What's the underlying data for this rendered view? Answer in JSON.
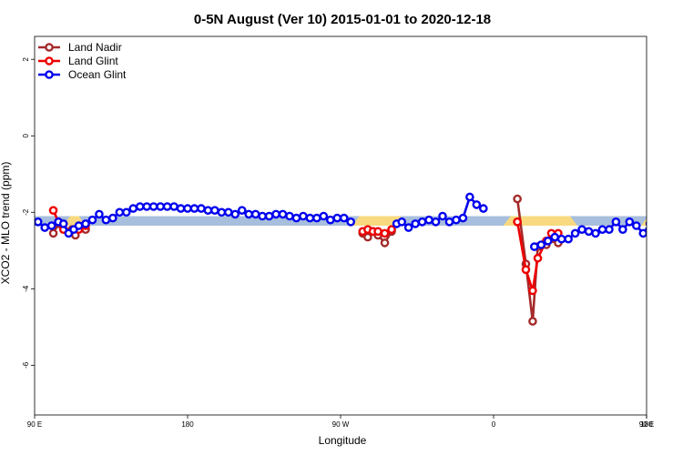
{
  "chart_data": {
    "type": "line",
    "title": "0-5N August (Ver 10)   2015-01-01 to 2020-12-18",
    "xlabel": "Longitude",
    "ylabel": "XCO2 - MLO trend (ppm)",
    "xlim": [
      90,
      450
    ],
    "ylim": [
      -7.3,
      2.6
    ],
    "x_ticks": [
      {
        "value": 90,
        "label": "90 E"
      },
      {
        "value": 180,
        "label": "180"
      },
      {
        "value": 270,
        "label": "90 W"
      },
      {
        "value": 360,
        "label": "0"
      },
      {
        "value": 450,
        "label": "90 E"
      },
      {
        "value": 540,
        "label": "180"
      }
    ],
    "x_ticks_note": "last tick (180) drawn at right edge 450",
    "y_ticks": [
      2,
      0,
      -2,
      -4,
      -6
    ],
    "legend": {
      "position": "top-left"
    },
    "bands": {
      "blue": {
        "y_min": -2.35,
        "y_max": -2.1,
        "color": "#a7bedc",
        "x_from": 90,
        "x_to": 450
      },
      "yellow": {
        "color": "#f9d980",
        "segments": [
          {
            "x_from": 111,
            "x_to": 116
          },
          {
            "x_from": 281,
            "x_to": 305
          },
          {
            "x_from": 370,
            "x_to": 405
          },
          {
            "x_from": 451,
            "x_to": 458
          }
        ]
      }
    },
    "series": [
      {
        "name": "Land Nadir",
        "color": "#a52a2a",
        "segments": [
          [
            [
              101,
              -2.55
            ],
            [
              104,
              -2.3
            ]
          ],
          [
            [
              112,
              -2.45
            ],
            [
              114,
              -2.6
            ]
          ],
          [
            [
              116,
              -2.4
            ],
            [
              120,
              -2.45
            ]
          ],
          [
            [
              283,
              -2.55
            ],
            [
              286,
              -2.65
            ],
            [
              289,
              -2.5
            ],
            [
              292,
              -2.6
            ],
            [
              296,
              -2.8
            ],
            [
              300,
              -2.5
            ]
          ],
          [
            [
              374,
              -1.65
            ],
            [
              379,
              -3.35
            ],
            [
              383,
              -4.85
            ],
            [
              386,
              -2.9
            ],
            [
              391,
              -2.85
            ],
            [
              394,
              -2.7
            ],
            [
              398,
              -2.8
            ]
          ],
          [
            [
              461,
              -2.55
            ],
            [
              464,
              -2.3
            ],
            [
              469,
              -2.45
            ],
            [
              473,
              -2.6
            ],
            [
              477,
              -2.35
            ],
            [
              481,
              -2.45
            ]
          ]
        ]
      },
      {
        "name": "Land Glint",
        "color": "#ee0000",
        "segments": [
          [
            [
              101,
              -1.95
            ],
            [
              104,
              -2.25
            ],
            [
              107,
              -2.45
            ]
          ],
          [
            [
              116,
              -2.45
            ],
            [
              120,
              -2.35
            ]
          ],
          [
            [
              283,
              -2.5
            ],
            [
              286,
              -2.45
            ],
            [
              289,
              -2.5
            ],
            [
              292,
              -2.5
            ],
            [
              296,
              -2.55
            ],
            [
              300,
              -2.45
            ]
          ],
          [
            [
              374,
              -2.25
            ],
            [
              379,
              -3.5
            ],
            [
              383,
              -4.05
            ],
            [
              386,
              -3.2
            ],
            [
              391,
              -2.75
            ],
            [
              394,
              -2.55
            ],
            [
              398,
              -2.55
            ]
          ],
          [
            [
              461,
              -1.95
            ],
            [
              464,
              -2.3
            ],
            [
              469,
              -2.45
            ],
            [
              473,
              -2.35
            ],
            [
              477,
              -2.4
            ],
            [
              481,
              -2.35
            ]
          ]
        ]
      },
      {
        "name": "Ocean Glint",
        "color": "#0000ee",
        "segments": [
          [
            [
              92,
              -2.25
            ],
            [
              96,
              -2.4
            ],
            [
              100,
              -2.35
            ],
            [
              104,
              -2.25
            ],
            [
              107,
              -2.3
            ],
            [
              110,
              -2.55
            ],
            [
              113,
              -2.45
            ],
            [
              116,
              -2.35
            ],
            [
              120,
              -2.3
            ],
            [
              124,
              -2.2
            ],
            [
              128,
              -2.05
            ],
            [
              132,
              -2.2
            ],
            [
              136,
              -2.15
            ],
            [
              140,
              -2.0
            ],
            [
              144,
              -2.0
            ],
            [
              148,
              -1.9
            ],
            [
              152,
              -1.85
            ],
            [
              156,
              -1.85
            ],
            [
              160,
              -1.85
            ],
            [
              164,
              -1.85
            ],
            [
              168,
              -1.85
            ],
            [
              172,
              -1.85
            ],
            [
              176,
              -1.9
            ],
            [
              180,
              -1.9
            ],
            [
              184,
              -1.9
            ],
            [
              188,
              -1.9
            ],
            [
              192,
              -1.95
            ],
            [
              196,
              -1.95
            ],
            [
              200,
              -2.0
            ],
            [
              204,
              -2.0
            ],
            [
              208,
              -2.05
            ],
            [
              212,
              -1.95
            ],
            [
              216,
              -2.05
            ],
            [
              220,
              -2.05
            ],
            [
              224,
              -2.1
            ],
            [
              228,
              -2.1
            ],
            [
              232,
              -2.05
            ],
            [
              236,
              -2.05
            ],
            [
              240,
              -2.1
            ],
            [
              244,
              -2.15
            ],
            [
              248,
              -2.1
            ],
            [
              252,
              -2.15
            ],
            [
              256,
              -2.15
            ],
            [
              260,
              -2.1
            ],
            [
              264,
              -2.2
            ],
            [
              268,
              -2.15
            ],
            [
              272,
              -2.15
            ],
            [
              276,
              -2.25
            ]
          ],
          [
            [
              303,
              -2.3
            ],
            [
              306,
              -2.25
            ],
            [
              310,
              -2.4
            ],
            [
              314,
              -2.3
            ],
            [
              318,
              -2.25
            ],
            [
              322,
              -2.2
            ],
            [
              326,
              -2.25
            ],
            [
              330,
              -2.1
            ],
            [
              334,
              -2.25
            ],
            [
              338,
              -2.2
            ],
            [
              342,
              -2.15
            ],
            [
              346,
              -1.6
            ],
            [
              350,
              -1.8
            ],
            [
              354,
              -1.9
            ]
          ],
          [
            [
              384,
              -2.9
            ],
            [
              388,
              -2.85
            ],
            [
              392,
              -2.75
            ],
            [
              396,
              -2.65
            ],
            [
              400,
              -2.7
            ],
            [
              404,
              -2.7
            ],
            [
              408,
              -2.55
            ],
            [
              412,
              -2.45
            ],
            [
              416,
              -2.5
            ],
            [
              420,
              -2.55
            ],
            [
              424,
              -2.45
            ],
            [
              428,
              -2.45
            ],
            [
              432,
              -2.25
            ],
            [
              436,
              -2.45
            ],
            [
              440,
              -2.25
            ],
            [
              444,
              -2.35
            ],
            [
              448,
              -2.55
            ],
            [
              452,
              -2.3
            ],
            [
              456,
              -2.4
            ],
            [
              460,
              -2.3
            ],
            [
              464,
              -2.25
            ],
            [
              468,
              -2.15
            ],
            [
              472,
              -2.0
            ],
            [
              476,
              -2.2
            ],
            [
              480,
              -2.1
            ]
          ]
        ]
      }
    ]
  }
}
